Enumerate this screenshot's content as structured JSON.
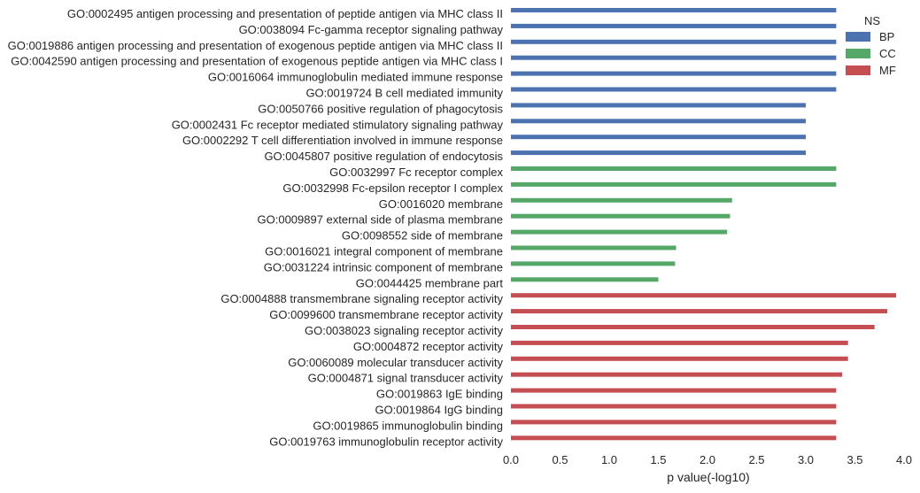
{
  "chart_data": {
    "type": "bar",
    "orientation": "horizontal",
    "title": "",
    "xlabel": "p value(-log10)",
    "ylabel": "",
    "xlim": [
      0,
      4
    ],
    "xticks": [
      "0.0",
      "0.5",
      "1.0",
      "1.5",
      "2.0",
      "2.5",
      "3.0",
      "3.5",
      "4.0"
    ],
    "grid": false,
    "legend": {
      "title": "NS",
      "placement": "top-right",
      "entries": [
        {
          "name": "BP",
          "color": "#4c72b0"
        },
        {
          "name": "CC",
          "color": "#55a868"
        },
        {
          "name": "MF",
          "color": "#c44e52"
        }
      ]
    },
    "bars": [
      {
        "label": "GO:0002495 antigen processing and presentation of peptide antigen via MHC class II",
        "ns": "BP",
        "value": 3.31
      },
      {
        "label": "GO:0038094 Fc-gamma receptor signaling pathway",
        "ns": "BP",
        "value": 3.31
      },
      {
        "label": "GO:0019886 antigen processing and presentation of exogenous peptide antigen via MHC class II",
        "ns": "BP",
        "value": 3.31
      },
      {
        "label": "GO:0042590 antigen processing and presentation of exogenous peptide antigen via MHC class I",
        "ns": "BP",
        "value": 3.31
      },
      {
        "label": "GO:0016064 immunoglobulin mediated immune response",
        "ns": "BP",
        "value": 3.31
      },
      {
        "label": "GO:0019724 B cell mediated immunity",
        "ns": "BP",
        "value": 3.31
      },
      {
        "label": "GO:0050766 positive regulation of phagocytosis",
        "ns": "BP",
        "value": 3.0
      },
      {
        "label": "GO:0002431 Fc receptor mediated stimulatory signaling pathway",
        "ns": "BP",
        "value": 3.0
      },
      {
        "label": "GO:0002292 T cell differentiation involved in immune response",
        "ns": "BP",
        "value": 3.0
      },
      {
        "label": "GO:0045807 positive regulation of endocytosis",
        "ns": "BP",
        "value": 3.0
      },
      {
        "label": "GO:0032997 Fc receptor complex",
        "ns": "CC",
        "value": 3.31
      },
      {
        "label": "GO:0032998 Fc-epsilon receptor I complex",
        "ns": "CC",
        "value": 3.31
      },
      {
        "label": "GO:0016020 membrane",
        "ns": "CC",
        "value": 2.25
      },
      {
        "label": "GO:0009897 external side of plasma membrane",
        "ns": "CC",
        "value": 2.23
      },
      {
        "label": "GO:0098552 side of membrane",
        "ns": "CC",
        "value": 2.2
      },
      {
        "label": "GO:0016021 integral component of membrane",
        "ns": "CC",
        "value": 1.68
      },
      {
        "label": "GO:0031224 intrinsic component of membrane",
        "ns": "CC",
        "value": 1.67
      },
      {
        "label": "GO:0044425 membrane part",
        "ns": "CC",
        "value": 1.5
      },
      {
        "label": "GO:0004888 transmembrane signaling receptor activity",
        "ns": "MF",
        "value": 3.92
      },
      {
        "label": "GO:0099600 transmembrane receptor activity",
        "ns": "MF",
        "value": 3.83
      },
      {
        "label": "GO:0038023 signaling receptor activity",
        "ns": "MF",
        "value": 3.7
      },
      {
        "label": "GO:0004872 receptor activity",
        "ns": "MF",
        "value": 3.43
      },
      {
        "label": "GO:0060089 molecular transducer activity",
        "ns": "MF",
        "value": 3.43
      },
      {
        "label": "GO:0004871 signal transducer activity",
        "ns": "MF",
        "value": 3.37
      },
      {
        "label": "GO:0019863 IgE binding",
        "ns": "MF",
        "value": 3.31
      },
      {
        "label": "GO:0019864 IgG binding",
        "ns": "MF",
        "value": 3.31
      },
      {
        "label": "GO:0019865 immunoglobulin binding",
        "ns": "MF",
        "value": 3.31
      },
      {
        "label": "GO:0019763 immunoglobulin receptor activity",
        "ns": "MF",
        "value": 3.31
      }
    ]
  }
}
